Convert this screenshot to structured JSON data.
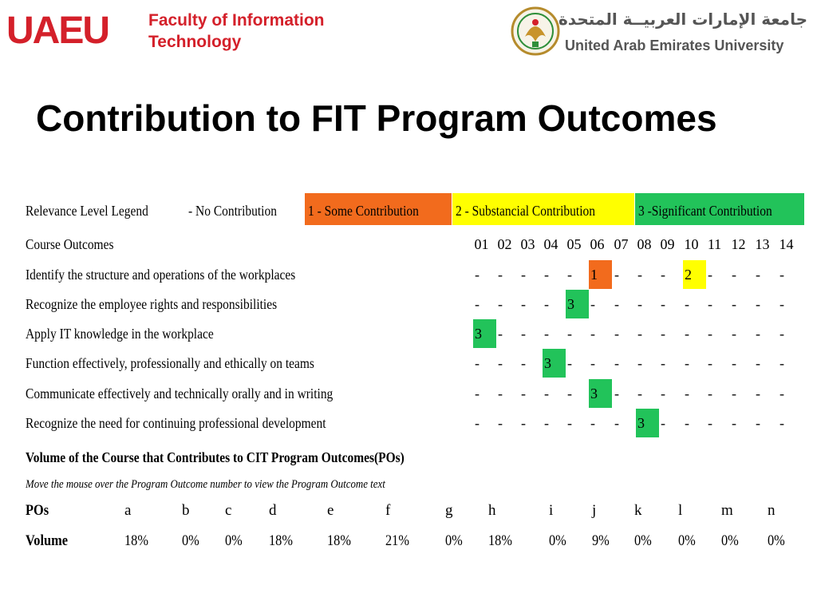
{
  "header": {
    "logo_text": "UAEU",
    "faculty_line1": "Faculty of Information",
    "faculty_line2": "Technology",
    "university_ar": "جامعة الإمارات العربيــة المتحدة",
    "university_en": "United Arab Emirates University"
  },
  "title": "Contribution to FIT Program Outcomes",
  "legend": {
    "label": "Relevance Level Legend",
    "levels": [
      {
        "text": "- No Contribution",
        "color": "#ffffff"
      },
      {
        "text": "1 - Some Contribution",
        "color": "#f26b1d"
      },
      {
        "text": "2 - Substancial Contribution",
        "color": "#ffff00"
      },
      {
        "text": "3 -Significant Contribution",
        "color": "#22c35a"
      }
    ]
  },
  "outcomes_header": "Course Outcomes",
  "columns": [
    "01",
    "02",
    "03",
    "04",
    "05",
    "06",
    "07",
    "08",
    "09",
    "10",
    "11",
    "12",
    "13",
    "14"
  ],
  "outcomes": [
    {
      "label": "Identify the structure and operations of the workplaces",
      "values": [
        "-",
        "-",
        "-",
        "-",
        "-",
        "1",
        "-",
        "-",
        "-",
        "2",
        "-",
        "-",
        "-",
        "-"
      ]
    },
    {
      "label": "Recognize the employee rights and responsibilities",
      "values": [
        "-",
        "-",
        "-",
        "-",
        "3",
        "-",
        "-",
        "-",
        "-",
        "-",
        "-",
        "-",
        "-",
        "-"
      ]
    },
    {
      "label": "Apply IT knowledge in the workplace",
      "values": [
        "3",
        "-",
        "-",
        "-",
        "-",
        "-",
        "-",
        "-",
        "-",
        "-",
        "-",
        "-",
        "-",
        "-"
      ]
    },
    {
      "label": "Function effectively, professionally and ethically on teams",
      "values": [
        "-",
        "-",
        "-",
        "3",
        "-",
        "-",
        "-",
        "-",
        "-",
        "-",
        "-",
        "-",
        "-",
        "-"
      ]
    },
    {
      "label": "Communicate effectively and technically orally and in writing",
      "values": [
        "-",
        "-",
        "-",
        "-",
        "-",
        "3",
        "-",
        "-",
        "-",
        "-",
        "-",
        "-",
        "-",
        "-"
      ]
    },
    {
      "label": "Recognize the need for continuing professional development",
      "values": [
        "-",
        "-",
        "-",
        "-",
        "-",
        "-",
        "-",
        "3",
        "-",
        "-",
        "-",
        "-",
        "-",
        "-"
      ]
    }
  ],
  "volume_heading": "Volume of the Course that Contributes to CIT Program Outcomes(POs)",
  "hint": "Move the mouse over the Program Outcome number to view the Program Outcome text",
  "pos_label": "POs",
  "volume_label": "Volume",
  "pos": [
    "a",
    "b",
    "c",
    "d",
    "e",
    "f",
    "g",
    "h",
    "i",
    "j",
    "k",
    "l",
    "m",
    "n"
  ],
  "volumes": [
    "18%",
    "0%",
    "0%",
    "18%",
    "18%",
    "21%",
    "0%",
    "18%",
    "0%",
    "9%",
    "0%",
    "0%",
    "0%",
    "0%"
  ]
}
